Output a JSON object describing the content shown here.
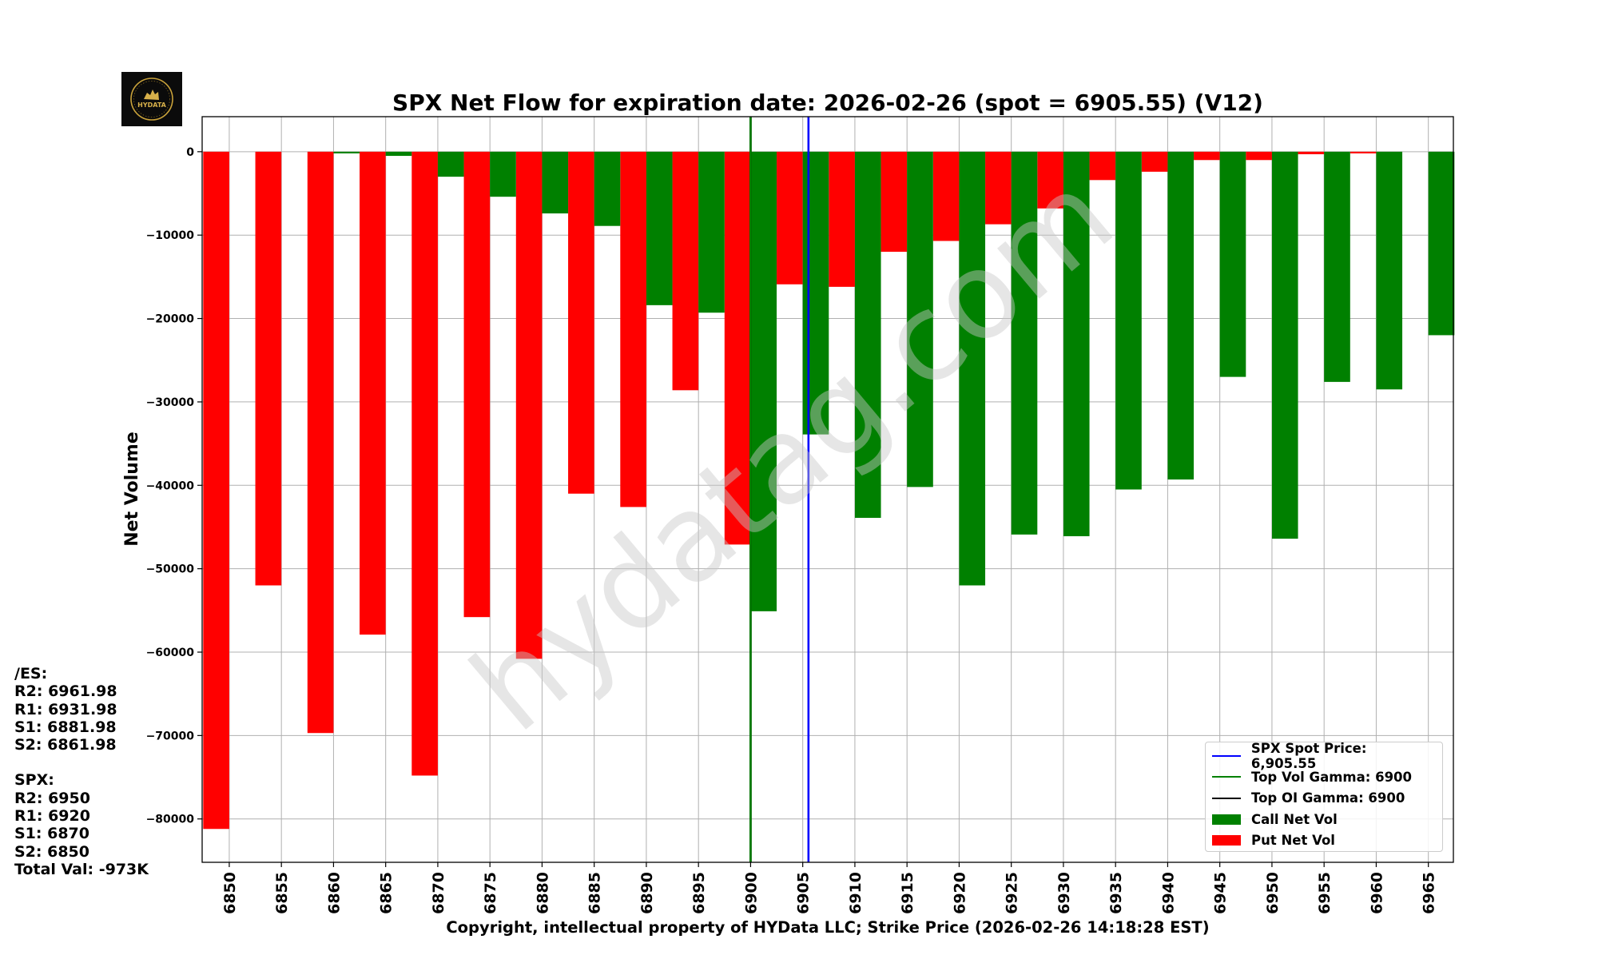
{
  "chart_data": {
    "type": "bar",
    "title": "SPX Net Flow for expiration date: 2026-02-26 (spot = 6905.55) (V12)",
    "xlabel": "Copyright, intellectual property of HYData LLC; Strike Price (2026-02-26 14:18:28 EST)",
    "ylabel": "Net Volume",
    "x_tick_labels": [
      "6850",
      "6855",
      "6860",
      "6865",
      "6870",
      "6875",
      "6880",
      "6885",
      "6890",
      "6895",
      "6900",
      "6905",
      "6910",
      "6915",
      "6920",
      "6925",
      "6930",
      "6935",
      "6940",
      "6945",
      "6950",
      "6955",
      "6960",
      "6965"
    ],
    "y_tick_labels": [
      "0",
      "−10000",
      "−20000",
      "−30000",
      "−40000",
      "−50000",
      "−60000",
      "−70000",
      "−80000"
    ],
    "y_ticks": [
      0,
      -10000,
      -20000,
      -30000,
      -40000,
      -50000,
      -60000,
      -70000,
      -80000
    ],
    "ylim": [
      -85200,
      4200
    ],
    "xlim": [
      6847.4,
      6967.4
    ],
    "bar_width": 2.5,
    "series": [
      {
        "name": "Put Net Vol",
        "color": "#ff0000",
        "strikes": [
          6850,
          6855,
          6860,
          6865,
          6870,
          6875,
          6880,
          6885,
          6890,
          6895,
          6900,
          6905,
          6910,
          6915,
          6920,
          6925,
          6930,
          6935,
          6940,
          6945,
          6950,
          6955,
          6960,
          6965
        ],
        "values": [
          -81200,
          -52000,
          -69700,
          -57900,
          -74800,
          -55800,
          -60800,
          -41000,
          -42600,
          -28600,
          -47100,
          -15900,
          -16200,
          -12000,
          -10700,
          -8700,
          -6800,
          -3400,
          -2400,
          -1000,
          -1000,
          -300,
          -200,
          0
        ]
      },
      {
        "name": "Call Net Vol",
        "color": "#008000",
        "strikes": [
          6850,
          6855,
          6860,
          6865,
          6870,
          6875,
          6880,
          6885,
          6890,
          6895,
          6900,
          6905,
          6910,
          6915,
          6920,
          6925,
          6930,
          6935,
          6940,
          6945,
          6950,
          6955,
          6960,
          6965
        ],
        "values": [
          0,
          0,
          -200,
          -500,
          -3000,
          -5400,
          -7400,
          -8900,
          -18400,
          -19300,
          -55100,
          -33900,
          -43900,
          -40200,
          -52000,
          -45900,
          -46100,
          -40500,
          -39300,
          -27000,
          -46400,
          -27600,
          -28500,
          -22000
        ]
      }
    ],
    "vertical_lines": [
      {
        "name": "Top OI Gamma",
        "x": 6900,
        "color": "#000000"
      },
      {
        "name": "Top Vol Gamma",
        "x": 6900,
        "color": "#008000"
      },
      {
        "name": "SPX Spot Price",
        "x": 6905.55,
        "color": "#0000ff"
      }
    ]
  },
  "legend": {
    "spot": "SPX Spot Price: 6,905.55",
    "vol_gamma": "Top Vol Gamma: 6900",
    "oi_gamma": "Top OI Gamma: 6900",
    "call": "Call Net Vol",
    "put": "Put Net Vol",
    "colors": {
      "spot": "#0000ff",
      "vol_gamma": "#008000",
      "oi_gamma": "#000000",
      "call": "#008000",
      "put": "#ff0000"
    }
  },
  "levels": {
    "es_header": "/ES:",
    "es_r2": "R2: 6961.98",
    "es_r1": "R1: 6931.98",
    "es_s1": "S1: 6881.98",
    "es_s2": "S2: 6861.98",
    "spx_header": "SPX:",
    "spx_r2": "R2: 6950",
    "spx_r1": "R1: 6920",
    "spx_s1": "S1: 6870",
    "spx_s2": "S2: 6850",
    "total_val": "Total Val: -973K"
  },
  "logo": {
    "text": "HYDATA"
  },
  "watermark": "hydatag.com"
}
